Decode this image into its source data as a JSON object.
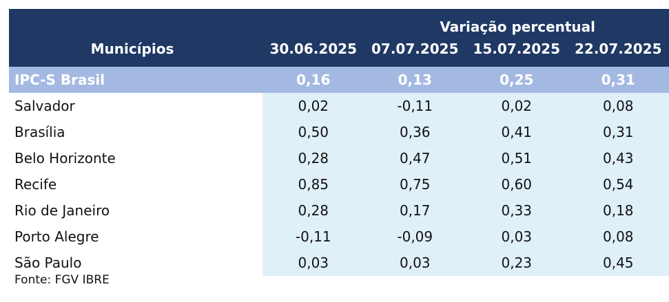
{
  "chart_data": {
    "type": "table",
    "group_header": "Variação percentual",
    "first_column_header": "Municípios",
    "columns": [
      "30.06.2025",
      "07.07.2025",
      "15.07.2025",
      "22.07.2025"
    ],
    "rows": [
      {
        "label": "IPC-S Brasil",
        "values": [
          "0,16",
          "0,13",
          "0,25",
          "0,31"
        ]
      },
      {
        "label": "Salvador",
        "values": [
          "0,02",
          "-0,11",
          "0,02",
          "0,08"
        ]
      },
      {
        "label": "Brasília",
        "values": [
          "0,50",
          "0,36",
          "0,41",
          "0,31"
        ]
      },
      {
        "label": "Belo Horizonte",
        "values": [
          "0,28",
          "0,47",
          "0,51",
          "0,43"
        ]
      },
      {
        "label": "Recife",
        "values": [
          "0,85",
          "0,75",
          "0,60",
          "0,54"
        ]
      },
      {
        "label": "Rio de Janeiro",
        "values": [
          "0,28",
          "0,17",
          "0,33",
          "0,18"
        ]
      },
      {
        "label": "Porto Alegre",
        "values": [
          "-0,11",
          "-0,09",
          "0,03",
          "0,08"
        ]
      },
      {
        "label": "São Paulo",
        "values": [
          "0,03",
          "0,03",
          "0,23",
          "0,45"
        ]
      }
    ],
    "source": "Fonte: FGV IBRE"
  },
  "colors": {
    "header_bg": "#1f3864",
    "highlight_row_bg": "#a4b9e2",
    "value_cell_bg": "#e0f0f9"
  }
}
